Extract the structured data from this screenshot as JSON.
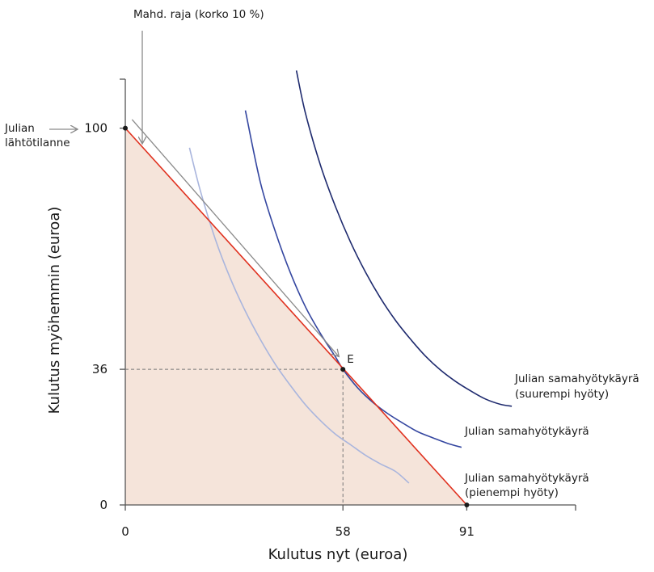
{
  "chart_data": {
    "type": "line",
    "xlabel": "Kulutus nyt (euroa)",
    "ylabel": "Kulutus myöhemmin (euroa)",
    "xlim": [
      0,
      120
    ],
    "ylim": [
      0,
      113
    ],
    "x_ticks": [
      {
        "value": 0,
        "label": "0"
      },
      {
        "value": 58,
        "label": "58"
      },
      {
        "value": 91,
        "label": "91"
      }
    ],
    "y_ticks": [
      {
        "value": 0,
        "label": "0"
      },
      {
        "value": 36,
        "label": "36"
      },
      {
        "value": 100,
        "label": "100"
      }
    ],
    "budget_line": {
      "points": [
        [
          0,
          100
        ],
        [
          91,
          0
        ]
      ],
      "color": "#e0301e",
      "fill": "#f5e4da"
    },
    "feasible_frontier_label": "Mahd. raja (korko 10 %)",
    "start_point": {
      "x": 0,
      "y": 100,
      "label_lines": [
        "Julian",
        "lähtötilanne"
      ]
    },
    "end_point": {
      "x": 91,
      "y": 0
    },
    "equilibrium": {
      "x": 58,
      "y": 36,
      "label": "E"
    },
    "indifference_curves": [
      {
        "name_lines": [
          "Julian samahyötykäyrä",
          "(pienempi hyöty)"
        ],
        "color": "#a9b5dd",
        "points": [
          [
            17.1,
            94.8
          ],
          [
            20,
            83.4
          ],
          [
            24,
            70.5
          ],
          [
            28,
            60.1
          ],
          [
            32,
            51.4
          ],
          [
            36,
            43.9
          ],
          [
            40,
            37.3
          ],
          [
            44,
            31.7
          ],
          [
            48,
            26.6
          ],
          [
            52,
            22.4
          ],
          [
            56,
            18.8
          ],
          [
            60,
            16.0
          ],
          [
            64,
            13.2
          ],
          [
            68,
            10.9
          ],
          [
            72,
            8.9
          ],
          [
            75.6,
            5.8
          ]
        ]
      },
      {
        "name_lines": [
          "Julian samahyötykäyrä"
        ],
        "color": "#3446a0",
        "points": [
          [
            32,
            104.7
          ],
          [
            36,
            85.6
          ],
          [
            40,
            72.5
          ],
          [
            44,
            61.6
          ],
          [
            48,
            52.6
          ],
          [
            52,
            45.5
          ],
          [
            56,
            39.3
          ],
          [
            58,
            36.0
          ],
          [
            62,
            31.0
          ],
          [
            66,
            27.2
          ],
          [
            70,
            24.2
          ],
          [
            74,
            21.7
          ],
          [
            78,
            19.4
          ],
          [
            82,
            17.8
          ],
          [
            86,
            16.3
          ],
          [
            89.6,
            15.3
          ]
        ]
      },
      {
        "name_lines": [
          "Julian samahyötykäyrä",
          "(suurempi hyöty)"
        ],
        "color": "#1e2a6e",
        "points": [
          [
            45.6,
            115.3
          ],
          [
            48,
            104.0
          ],
          [
            52,
            90.2
          ],
          [
            56,
            79.2
          ],
          [
            60,
            69.8
          ],
          [
            64,
            61.8
          ],
          [
            68,
            54.9
          ],
          [
            72,
            49.0
          ],
          [
            76,
            44.0
          ],
          [
            80,
            39.5
          ],
          [
            84,
            35.8
          ],
          [
            88,
            32.8
          ],
          [
            92,
            30.3
          ],
          [
            96,
            28.1
          ],
          [
            100,
            26.7
          ],
          [
            103,
            26.2
          ]
        ]
      }
    ],
    "arrow_segment": {
      "from": [
        1.8,
        102.3
      ],
      "to": [
        56.8,
        39.5
      ],
      "color": "#8a8a8a"
    }
  }
}
